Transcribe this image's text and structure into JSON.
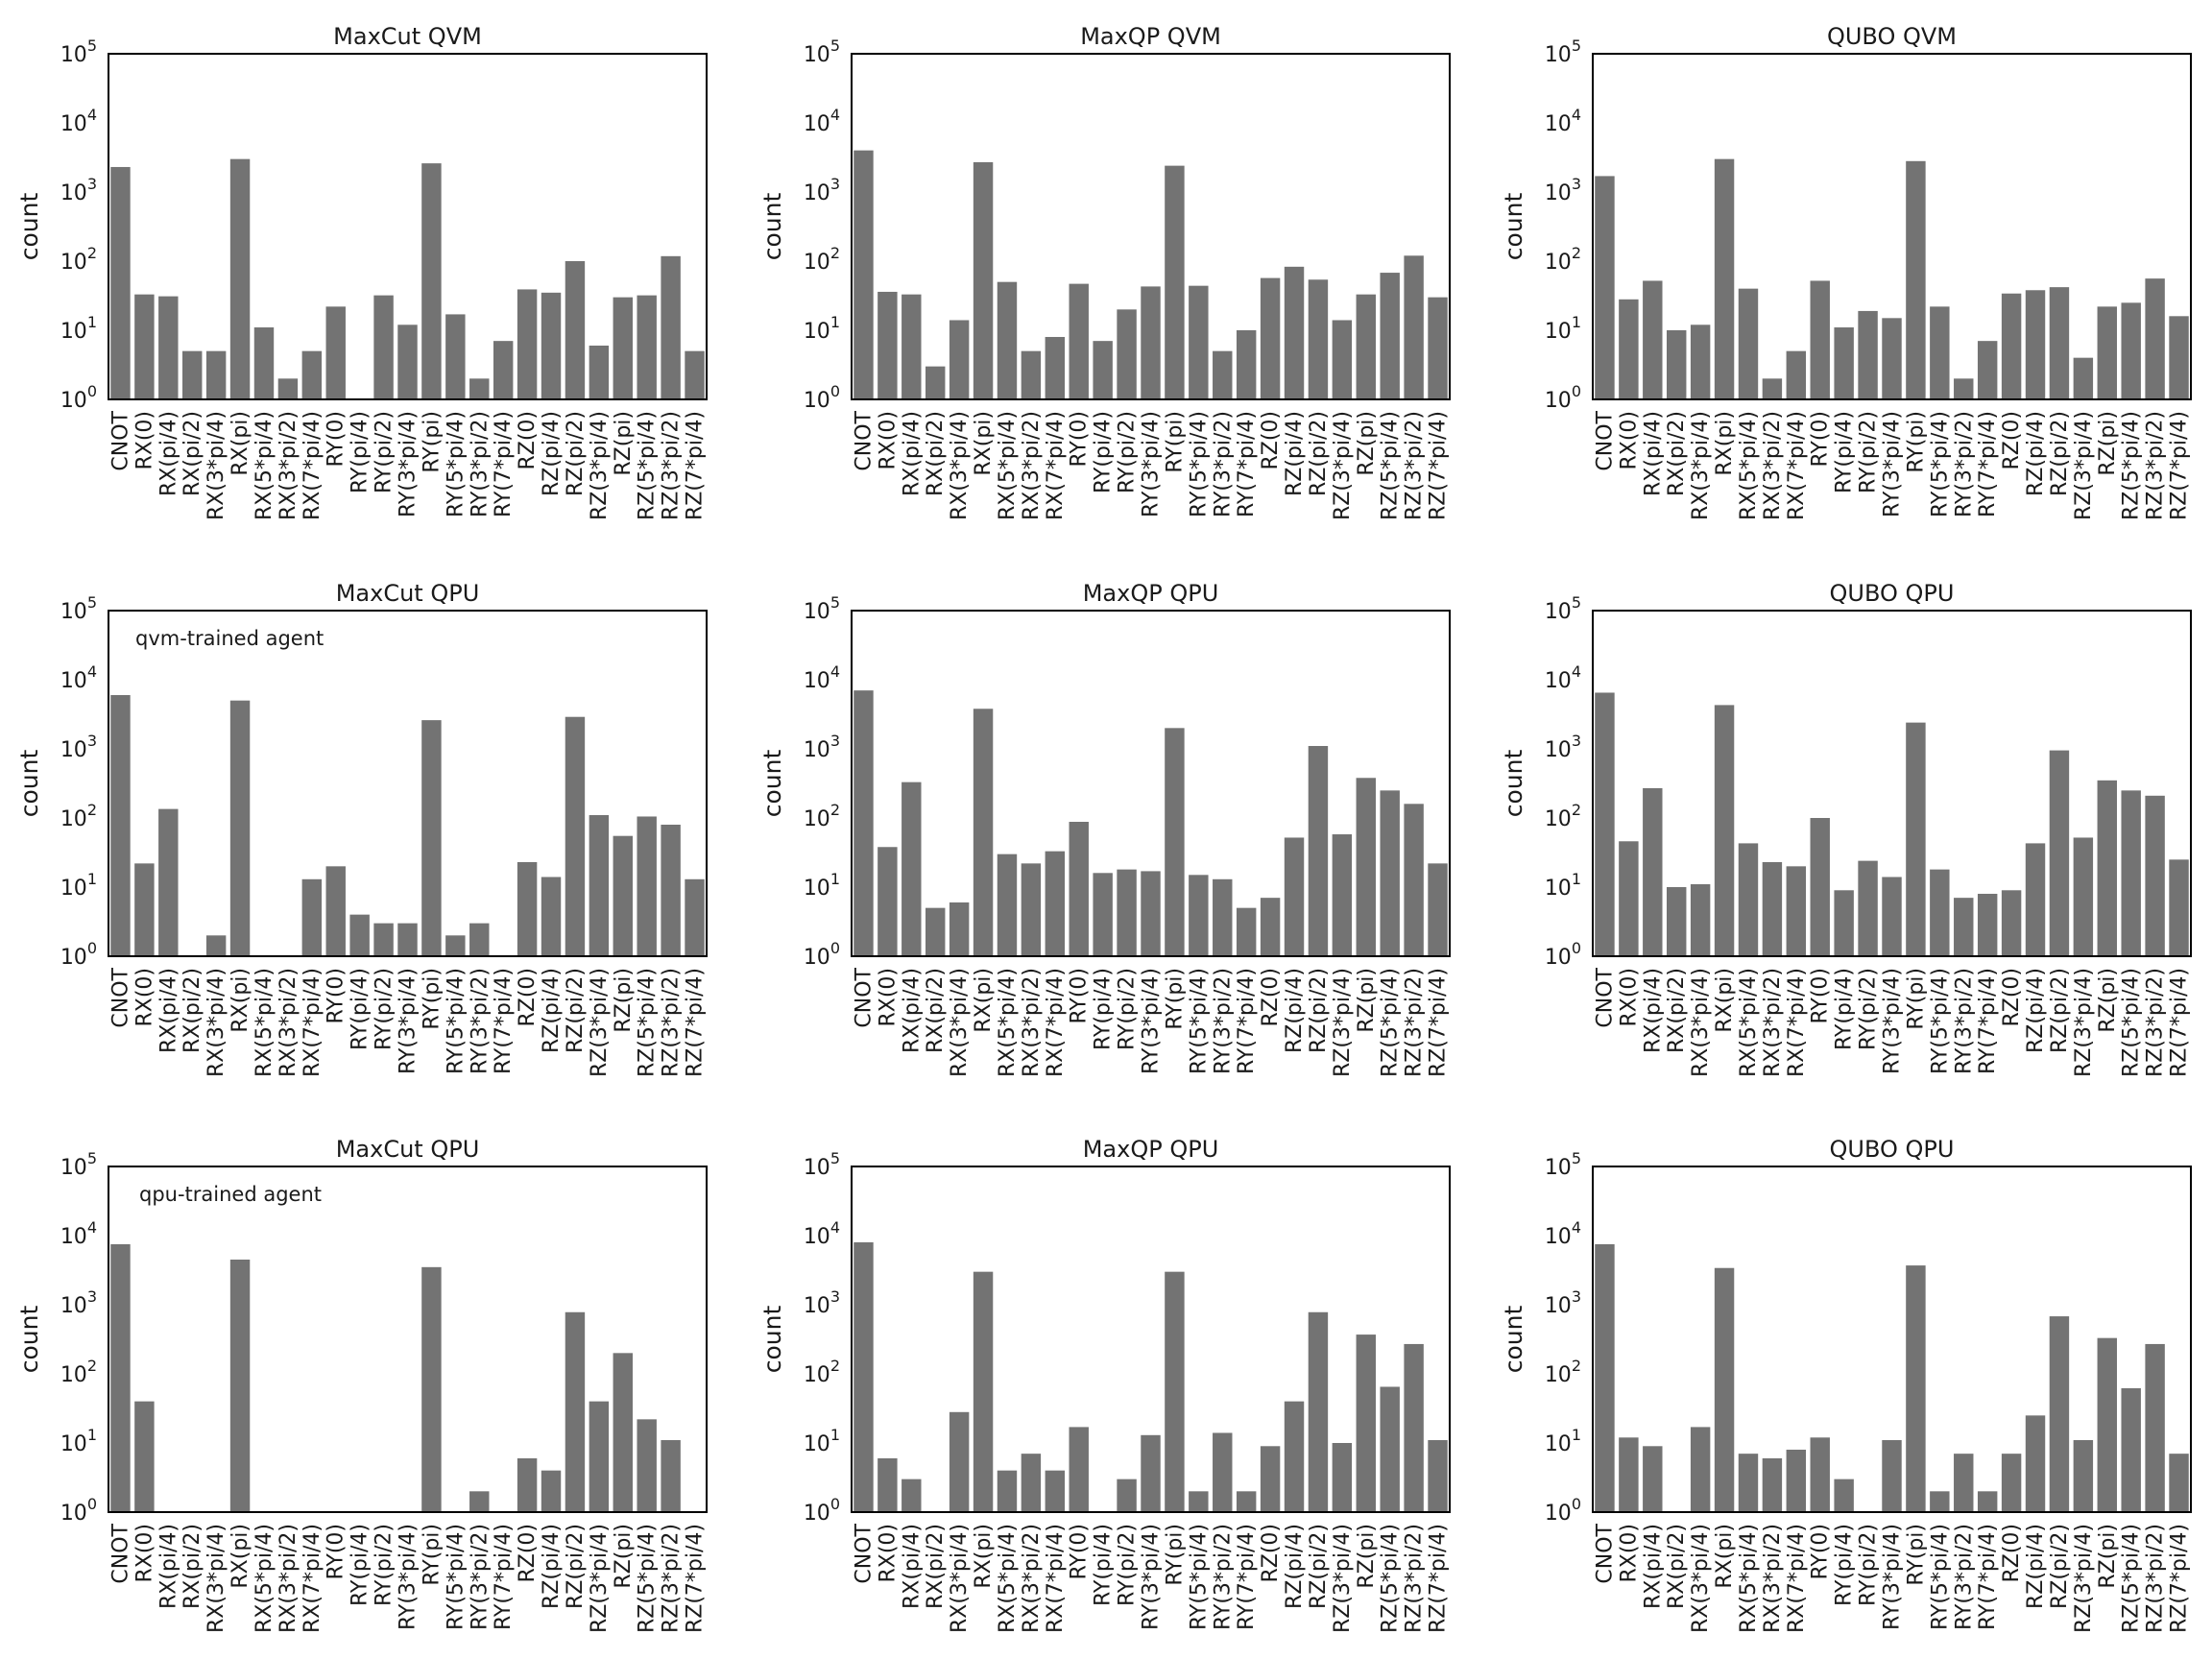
{
  "categories": [
    "CNOT",
    "RX(0)",
    "RX(pi/4)",
    "RX(pi/2)",
    "RX(3*pi/4)",
    "RX(pi)",
    "RX(5*pi/4)",
    "RX(3*pi/2)",
    "RX(7*pi/4)",
    "RY(0)",
    "RY(pi/4)",
    "RY(pi/2)",
    "RY(3*pi/4)",
    "RY(pi)",
    "RY(5*pi/4)",
    "RY(3*pi/2)",
    "RY(7*pi/4)",
    "RZ(0)",
    "RZ(pi/4)",
    "RZ(pi/2)",
    "RZ(3*pi/4)",
    "RZ(pi)",
    "RZ(5*pi/4)",
    "RZ(3*pi/2)",
    "RZ(7*pi/4)"
  ],
  "ylabel": "count",
  "ytick_labels": [
    "10^0",
    "10^1",
    "10^2",
    "10^3",
    "10^4",
    "10^5"
  ],
  "chart_data": [
    {
      "type": "bar",
      "title": "MaxCut QVM",
      "annotation": "",
      "ylabel": "count",
      "yscale": "log",
      "ylim": [
        1,
        100000
      ],
      "values": [
        2300,
        33,
        31,
        5,
        5,
        3000,
        11,
        2,
        5,
        22,
        1,
        32,
        12,
        2600,
        17,
        2,
        7,
        39,
        35,
        100,
        6,
        30,
        32,
        118,
        5
      ]
    },
    {
      "type": "bar",
      "title": "MaxQP QVM",
      "annotation": "",
      "ylabel": "count",
      "yscale": "log",
      "ylim": [
        1,
        100000
      ],
      "values": [
        4000,
        36,
        33,
        3,
        14,
        2700,
        50,
        5,
        8,
        47,
        7,
        20,
        43,
        2400,
        44,
        5,
        10,
        57,
        83,
        54,
        14,
        33,
        68,
        120,
        30
      ]
    },
    {
      "type": "bar",
      "title": "QUBO QVM",
      "annotation": "",
      "ylabel": "count",
      "yscale": "log",
      "ylim": [
        1,
        100000
      ],
      "values": [
        1700,
        28,
        52,
        10,
        12,
        3000,
        40,
        2,
        5,
        52,
        11,
        19,
        15,
        2800,
        22,
        2,
        7,
        34,
        38,
        42,
        4,
        22,
        25,
        56,
        16
      ]
    },
    {
      "type": "bar",
      "title": "MaxCut QPU",
      "annotation": "qvm-trained agent",
      "ylabel": "count",
      "yscale": "log",
      "ylim": [
        1,
        100000
      ],
      "values": [
        6000,
        22,
        135,
        1,
        2,
        5000,
        1,
        1,
        13,
        20,
        4,
        3,
        3,
        2600,
        2,
        3,
        1,
        23,
        14,
        2900,
        110,
        55,
        105,
        80,
        13
      ]
    },
    {
      "type": "bar",
      "title": "MaxQP QPU",
      "annotation": "",
      "ylabel": "count",
      "yscale": "log",
      "ylim": [
        1,
        100000
      ],
      "values": [
        7000,
        38,
        330,
        5,
        6,
        3800,
        30,
        22,
        33,
        88,
        16,
        18,
        17,
        2000,
        15,
        13,
        5,
        7,
        52,
        1100,
        58,
        380,
        250,
        160,
        22
      ]
    },
    {
      "type": "bar",
      "title": "QUBO QPU",
      "annotation": "",
      "ylabel": "count",
      "yscale": "log",
      "ylim": [
        1,
        100000
      ],
      "values": [
        6500,
        46,
        270,
        10,
        11,
        4300,
        43,
        23,
        20,
        100,
        9,
        24,
        14,
        2400,
        18,
        7,
        8,
        9,
        43,
        950,
        52,
        350,
        250,
        210,
        25
      ]
    },
    {
      "type": "bar",
      "title": "MaxCut QPU",
      "annotation": "qpu-trained agent",
      "ylabel": "count",
      "yscale": "log",
      "ylim": [
        1,
        100000
      ],
      "values": [
        7500,
        40,
        1,
        1,
        1,
        4500,
        1,
        1,
        1,
        1,
        1,
        1,
        1,
        3500,
        1,
        2,
        1,
        6,
        4,
        780,
        40,
        200,
        22,
        11,
        1
      ]
    },
    {
      "type": "bar",
      "title": "MaxQP QPU",
      "annotation": "",
      "ylabel": "count",
      "yscale": "log",
      "ylim": [
        1,
        100000
      ],
      "values": [
        8000,
        6,
        3,
        1,
        28,
        3000,
        4,
        7,
        4,
        17,
        1,
        3,
        13,
        3000,
        2,
        14,
        2,
        9,
        40,
        780,
        10,
        370,
        65,
        270,
        11
      ]
    },
    {
      "type": "bar",
      "title": "QUBO QPU",
      "annotation": "",
      "ylabel": "count",
      "yscale": "log",
      "ylim": [
        1,
        100000
      ],
      "values": [
        7500,
        12,
        9,
        1,
        17,
        3400,
        7,
        6,
        8,
        12,
        3,
        1,
        11,
        3700,
        2,
        7,
        2,
        7,
        25,
        680,
        11,
        330,
        62,
        270,
        7
      ]
    }
  ]
}
